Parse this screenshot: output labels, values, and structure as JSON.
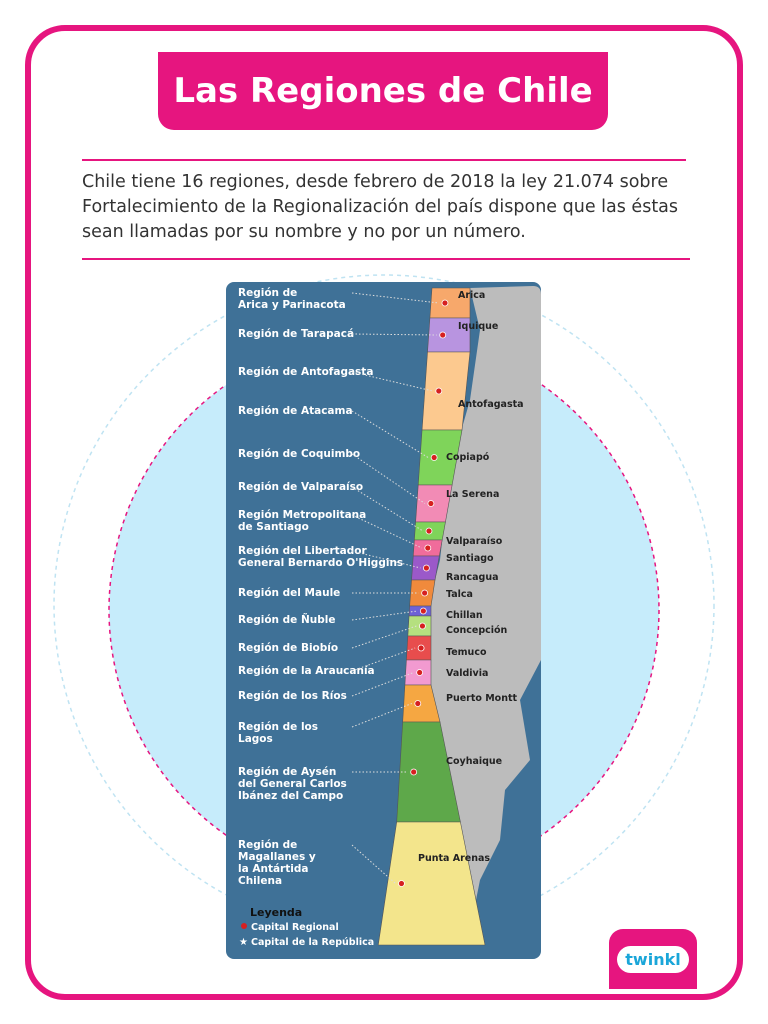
{
  "header": {
    "title": "Las Regiones de Chile"
  },
  "intro": "Chile tiene 16 regiones, desde febrero de 2018 la ley 21.074 sobre Fortalecimiento de la Regionalización del país dispone que las éstas sean llamadas por su nombre y no por un número.",
  "map": {
    "regions": [
      {
        "lines": [
          "Región de",
          "Arica y Parinacota"
        ]
      },
      {
        "lines": [
          "Región de Tarapacá"
        ]
      },
      {
        "lines": [
          "Región de Antofagasta"
        ]
      },
      {
        "lines": [
          "Región de Atacama"
        ]
      },
      {
        "lines": [
          "Región de Coquimbo"
        ]
      },
      {
        "lines": [
          "Región de Valparaíso"
        ]
      },
      {
        "lines": [
          "Región Metropolitana",
          "de Santiago"
        ]
      },
      {
        "lines": [
          "Región del Libertador",
          "General Bernardo O'Higgins"
        ]
      },
      {
        "lines": [
          "Región del Maule"
        ]
      },
      {
        "lines": [
          "Región de Ñuble"
        ]
      },
      {
        "lines": [
          "Región de Biobío"
        ]
      },
      {
        "lines": [
          "Región de la Araucanía"
        ]
      },
      {
        "lines": [
          "Región de los Ríos"
        ]
      },
      {
        "lines": [
          "Región de los",
          "Lagos"
        ]
      },
      {
        "lines": [
          "Región de Aysén",
          "del General Carlos",
          "Ibánez del Campo"
        ]
      },
      {
        "lines": [
          "Región de",
          "Magallanes y",
          "la Antártida",
          "Chilena"
        ]
      }
    ],
    "capitals": [
      "Arica",
      "Iquique",
      "Antofagasta",
      "Copiapó",
      "La Serena",
      "Valparaíso",
      "Santiago",
      "Rancagua",
      "Talca",
      "Chillan",
      "Concepción",
      "Temuco",
      "Valdivia",
      "Puerto Montt",
      "Coyhaique",
      "Punta Arenas"
    ],
    "legend": {
      "title": "Leyenda",
      "items": [
        "Capital Regional",
        "Capital de la República"
      ]
    }
  },
  "footer": {
    "logo": "twinkl"
  }
}
